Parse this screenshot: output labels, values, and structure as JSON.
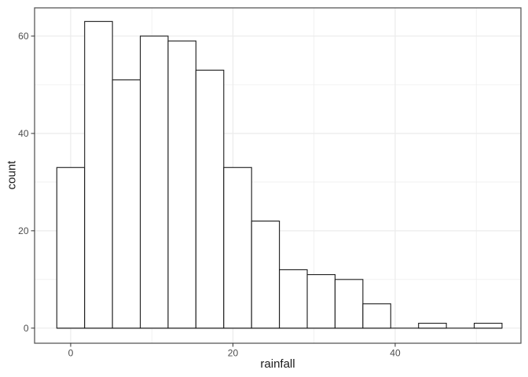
{
  "figure": {
    "background": "#ffffff"
  },
  "chart_data": {
    "type": "histogram",
    "title": "",
    "xlabel": "rainfall",
    "ylabel": "count",
    "bins": {
      "start": -1.71,
      "width": 3.43
    },
    "counts": [
      33,
      63,
      51,
      60,
      59,
      53,
      33,
      22,
      12,
      11,
      10,
      5,
      0,
      1,
      0,
      1
    ],
    "x_axis": {
      "tick_values": [
        0,
        20,
        40
      ],
      "tick_labels": [
        "0",
        "20",
        "40"
      ],
      "minor_ticks": [
        10,
        30,
        50
      ],
      "range": [
        -4.45,
        55.5
      ]
    },
    "y_axis": {
      "tick_values": [
        0,
        20,
        40,
        60
      ],
      "tick_labels": [
        "0",
        "20",
        "40",
        "60"
      ],
      "minor_ticks": [
        10,
        30,
        50
      ],
      "range": [
        -3.1,
        65.8
      ]
    },
    "grid": "major+minor",
    "legend": "none",
    "style": {
      "panel_background": "#ffffff",
      "bar_fill": "#ffffff",
      "bar_stroke": "#1a1a1a",
      "gridline_color": "#ebebeb",
      "panel_border_color": "#595959",
      "tick_mark_color": "#333333",
      "tick_label_color": "#4d4d4d",
      "axis_title_color": "#1a1a1a"
    }
  }
}
